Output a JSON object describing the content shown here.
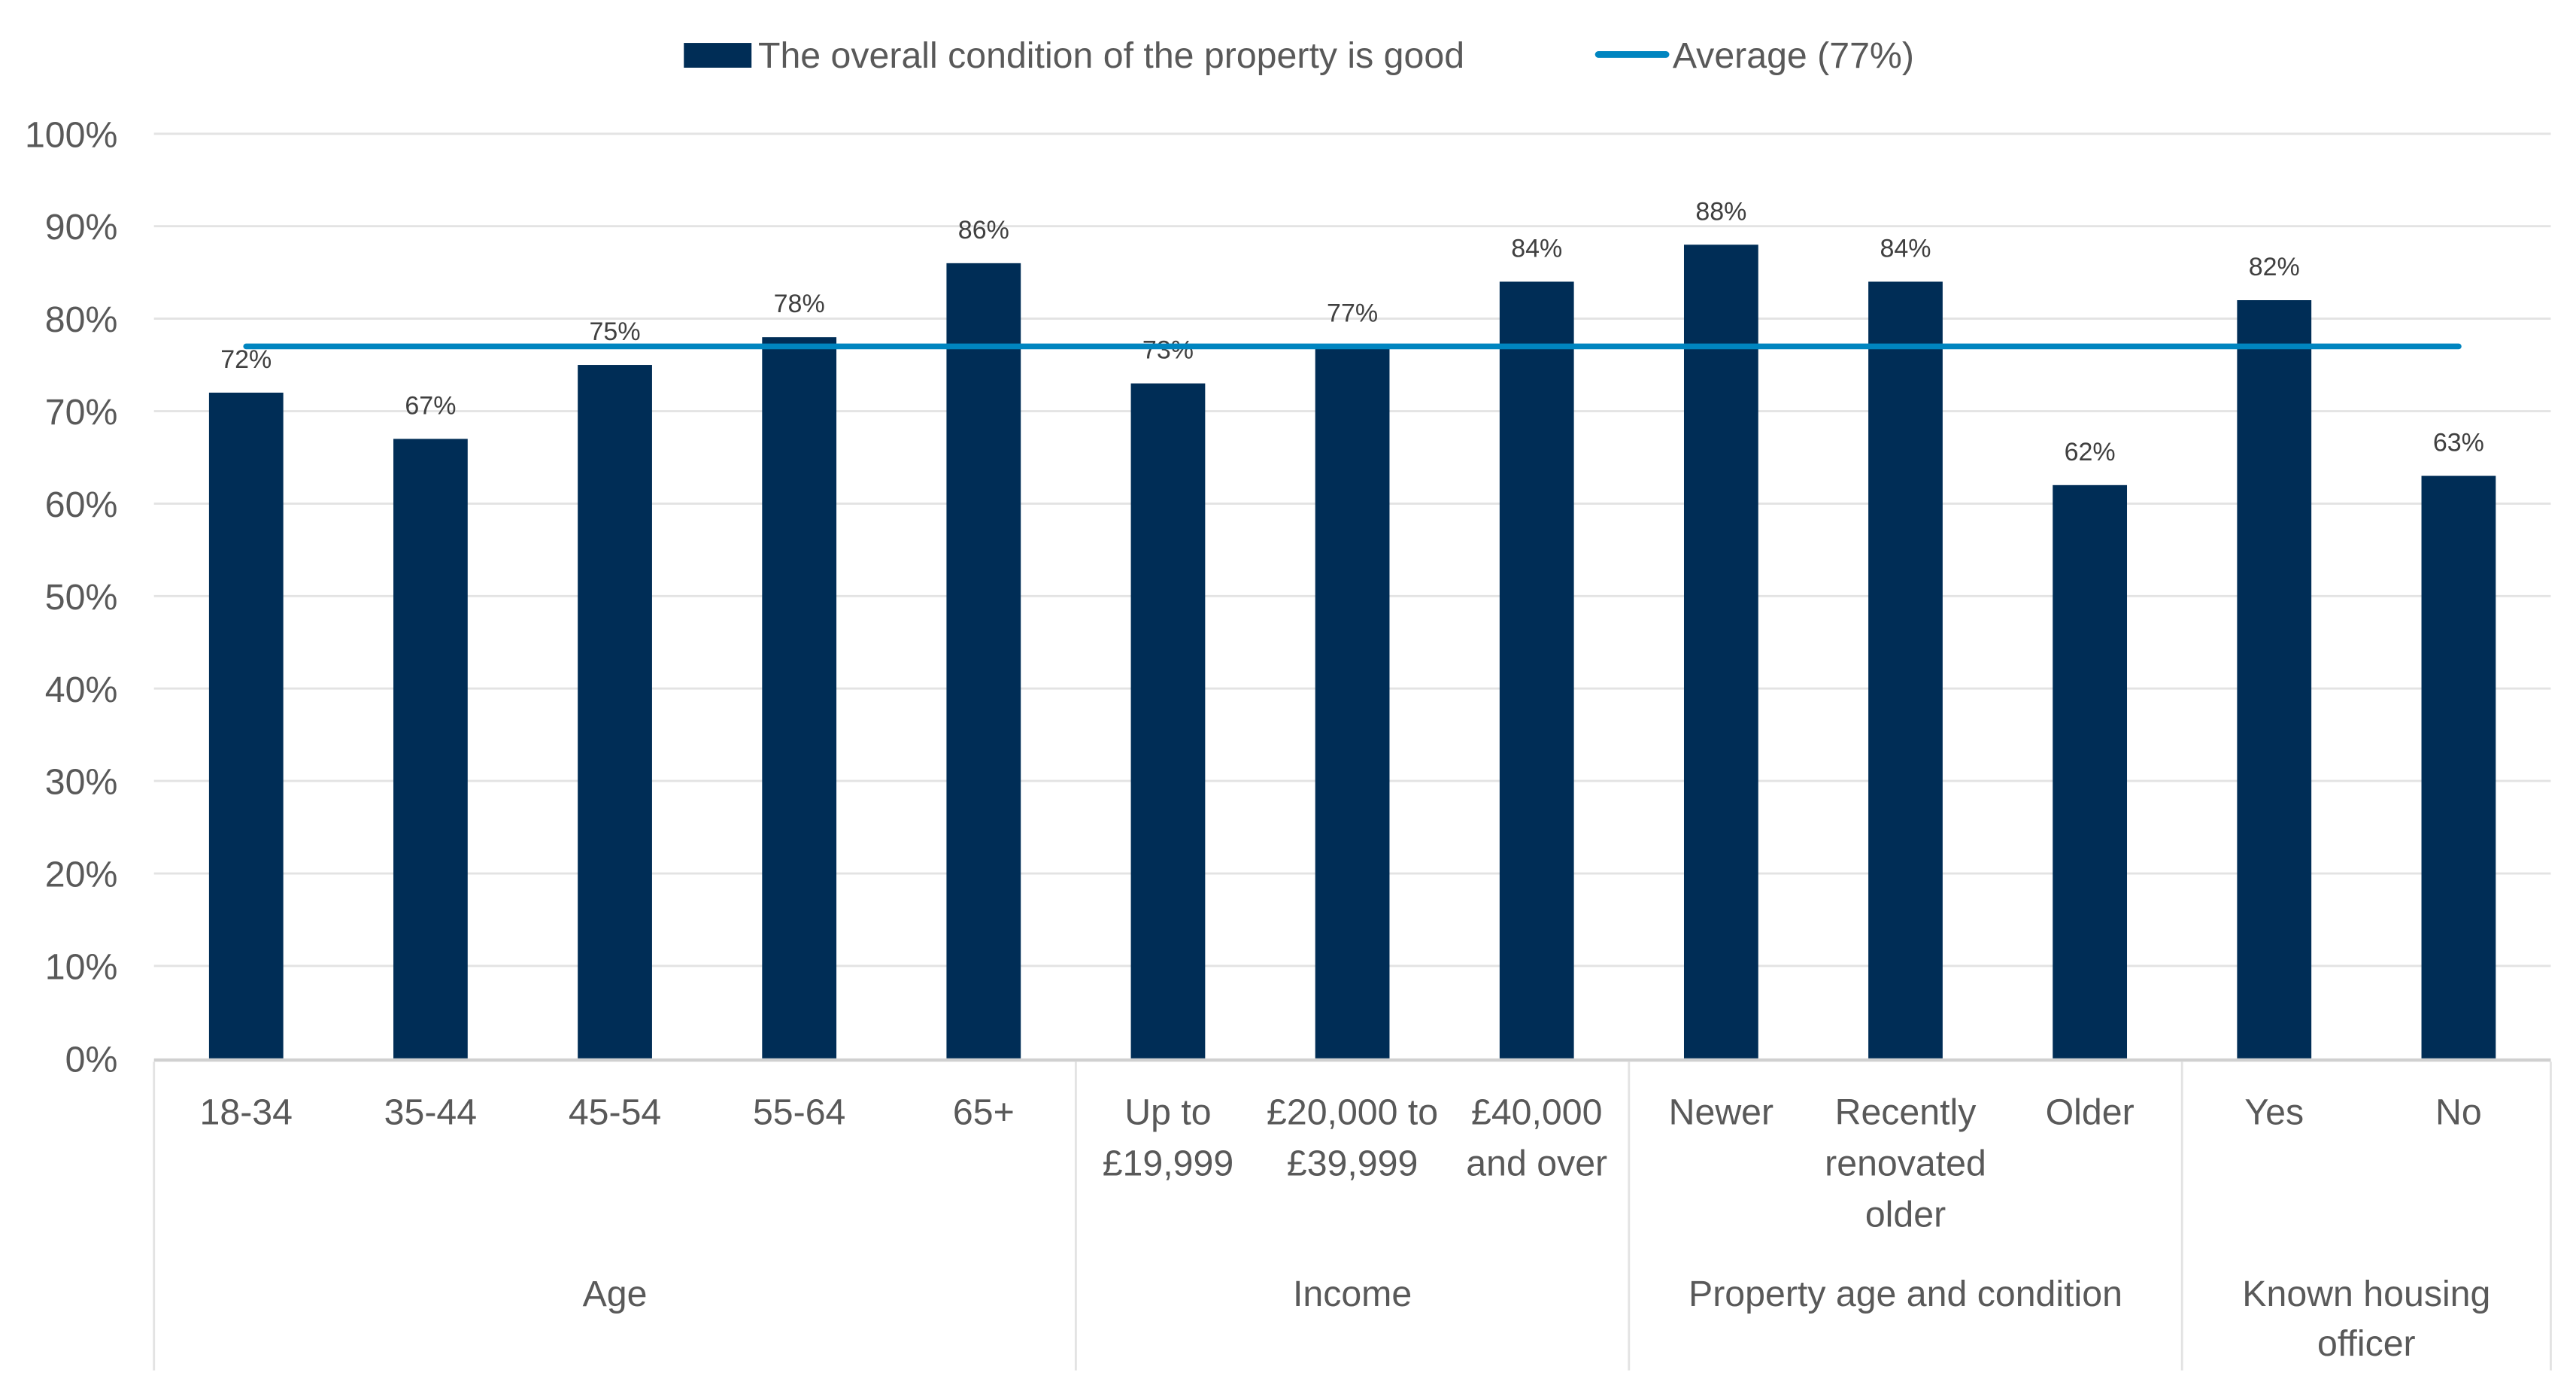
{
  "chart_data": {
    "type": "bar",
    "title": "",
    "xlabel": "",
    "ylabel": "",
    "ylim": [
      0,
      100
    ],
    "yticks": [
      "0%",
      "10%",
      "20%",
      "30%",
      "40%",
      "50%",
      "60%",
      "70%",
      "80%",
      "90%",
      "100%"
    ],
    "grid": true,
    "legend_placement": "top-center",
    "legend": {
      "bar": "The overall condition of the property is good",
      "line": "Average (77%)"
    },
    "categories": [
      [
        "18-34"
      ],
      [
        "35-44"
      ],
      [
        "45-54"
      ],
      [
        "55-64"
      ],
      [
        "65+"
      ],
      [
        "Up to",
        "£19,999"
      ],
      [
        "£20,000 to",
        "£39,999"
      ],
      [
        "£40,000",
        "and over"
      ],
      [
        "Newer"
      ],
      [
        "Recently",
        "renovated",
        "older"
      ],
      [
        "Older"
      ],
      [
        "Yes"
      ],
      [
        "No"
      ]
    ],
    "groups": [
      {
        "label": [
          "Age"
        ],
        "count": 5
      },
      {
        "label": [
          "Income"
        ],
        "count": 3
      },
      {
        "label": [
          "Property age and condition"
        ],
        "count": 3
      },
      {
        "label": [
          "Known housing",
          "officer"
        ],
        "count": 2
      }
    ],
    "series": [
      {
        "name": "The overall condition of the property is good",
        "type": "bar",
        "values": [
          72,
          67,
          75,
          78,
          86,
          73,
          77,
          84,
          88,
          84,
          62,
          82,
          63
        ],
        "labels": [
          "72%",
          "67%",
          "75%",
          "78%",
          "86%",
          "73%",
          "77%",
          "84%",
          "88%",
          "84%",
          "62%",
          "82%",
          "63%"
        ]
      },
      {
        "name": "Average (77%)",
        "type": "line",
        "value": 77
      }
    ],
    "colors": {
      "bar": "#002D56",
      "line": "#0085C0",
      "grid": "#E3E3E3",
      "axis": "#D0D0D0"
    }
  }
}
